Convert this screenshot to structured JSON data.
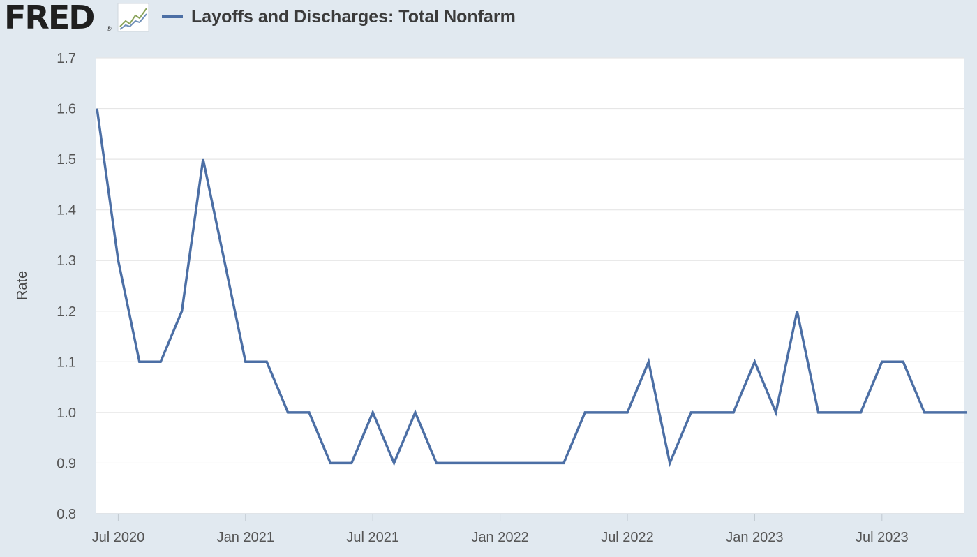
{
  "header": {
    "logo_text": "FRED",
    "logo_reg": "®",
    "series_title": "Layoffs and Discharges: Total Nonfarm"
  },
  "colors": {
    "background": "#e1e9f0",
    "plot_background": "#ffffff",
    "series": "#4c6fa5",
    "grid": "#e6e6e6"
  },
  "chart_data": {
    "type": "line",
    "title": "",
    "xlabel": "",
    "ylabel": "Rate",
    "ylim": [
      0.8,
      1.7
    ],
    "yticks": [
      "0.8",
      "0.9",
      "1.0",
      "1.1",
      "1.2",
      "1.3",
      "1.4",
      "1.5",
      "1.6",
      "1.7"
    ],
    "xticks": [
      {
        "date": "2020-07",
        "label": "Jul 2020"
      },
      {
        "date": "2021-01",
        "label": "Jan 2021"
      },
      {
        "date": "2021-07",
        "label": "Jul 2021"
      },
      {
        "date": "2022-01",
        "label": "Jan 2022"
      },
      {
        "date": "2022-07",
        "label": "Jul 2022"
      },
      {
        "date": "2023-01",
        "label": "Jan 2023"
      },
      {
        "date": "2023-07",
        "label": "Jul 2023"
      }
    ],
    "x_range": [
      "2020-06",
      "2023-11"
    ],
    "grid": true,
    "series": [
      {
        "name": "Layoffs and Discharges: Total Nonfarm",
        "x": [
          "2020-06",
          "2020-07",
          "2020-08",
          "2020-09",
          "2020-10",
          "2020-11",
          "2020-12",
          "2021-01",
          "2021-02",
          "2021-03",
          "2021-04",
          "2021-05",
          "2021-06",
          "2021-07",
          "2021-08",
          "2021-09",
          "2021-10",
          "2021-11",
          "2021-12",
          "2022-01",
          "2022-02",
          "2022-03",
          "2022-04",
          "2022-05",
          "2022-06",
          "2022-07",
          "2022-08",
          "2022-09",
          "2022-10",
          "2022-11",
          "2022-12",
          "2023-01",
          "2023-02",
          "2023-03",
          "2023-04",
          "2023-05",
          "2023-06",
          "2023-07",
          "2023-08",
          "2023-09",
          "2023-10",
          "2023-11"
        ],
        "values": [
          1.6,
          1.3,
          1.1,
          1.1,
          1.2,
          1.5,
          1.3,
          1.1,
          1.1,
          1.0,
          1.0,
          0.9,
          0.9,
          1.0,
          0.9,
          1.0,
          0.9,
          0.9,
          0.9,
          0.9,
          0.9,
          0.9,
          0.9,
          1.0,
          1.0,
          1.0,
          1.1,
          0.9,
          1.0,
          1.0,
          1.0,
          1.1,
          1.0,
          1.2,
          1.0,
          1.0,
          1.0,
          1.1,
          1.1,
          1.0,
          1.0,
          1.0
        ]
      }
    ]
  }
}
